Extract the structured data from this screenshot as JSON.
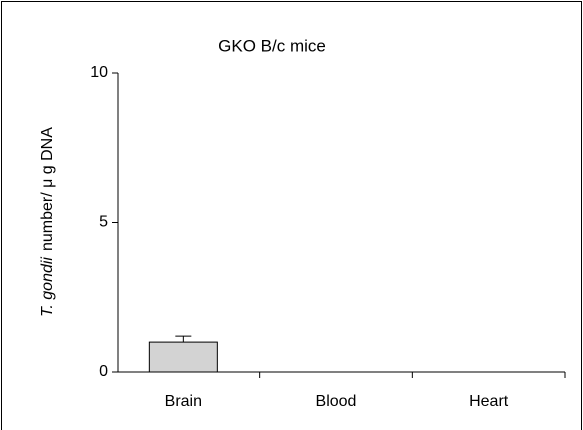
{
  "chart_data": {
    "type": "bar",
    "title": "GKO B/c mice",
    "ylabel_italic": "T. gondii",
    "ylabel": "number/ μ g DNA",
    "categories": [
      "Brain",
      "Blood",
      "Heart"
    ],
    "values": [
      1.0,
      0,
      0
    ],
    "errors": [
      0.2,
      null,
      null
    ],
    "color": "#d3d3d3",
    "ylim": [
      0,
      10
    ],
    "yticks": [
      0,
      5,
      10
    ],
    "grid": false
  }
}
